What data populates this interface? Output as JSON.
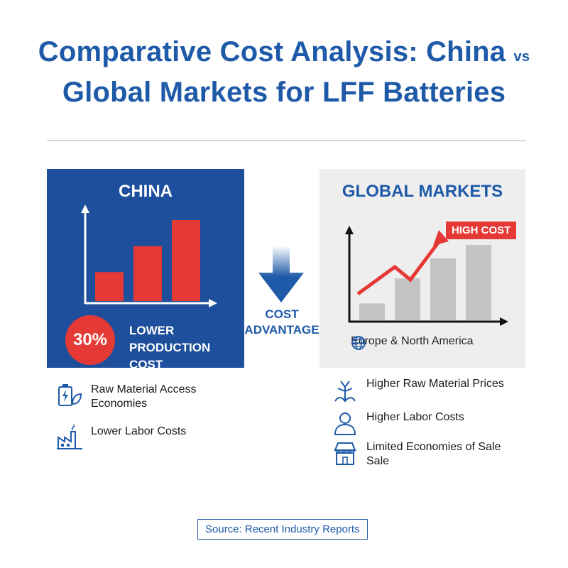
{
  "header": {
    "title_line1": "Comparative Cost Analysis: China",
    "title_vs": "vs",
    "title_line2": "Global Markets for LFF Batteries"
  },
  "china": {
    "title": "CHINA",
    "bar_values": [
      1,
      1.9,
      2.8
    ],
    "badge": "30%",
    "badge_text_1": "LOWER",
    "badge_text_2": "PRODUCTION COST",
    "features": [
      {
        "label": "Raw Material Access Economies",
        "icon": "battery-leaf-icon"
      },
      {
        "label": "Lower Labor Costs",
        "icon": "factory-icon"
      }
    ]
  },
  "advantage": {
    "line1": "COST",
    "line2": "ADVANTAGE"
  },
  "global": {
    "title": "GLOBAL MARKETS",
    "bar_values": [
      1,
      2.5,
      3.7,
      4.5
    ],
    "trend_label": "HIGH COST",
    "region": "Europe & North America",
    "features": [
      {
        "label": "Higher Raw Material Prices",
        "icon": "raw-material-icon"
      },
      {
        "label": "Higher Labor Costs",
        "icon": "worker-icon"
      },
      {
        "label": "Limited Economies of Sale Sale",
        "icon": "store-icon"
      }
    ]
  },
  "source": "Source: Recent Industry Reports",
  "colors": {
    "blue": "#1d4f9c",
    "red": "#e53935",
    "grey_bar": "#c4c4c4"
  }
}
